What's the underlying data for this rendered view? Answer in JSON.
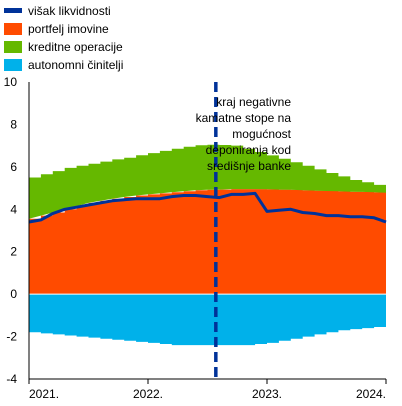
{
  "chart_data": {
    "type": "area",
    "title": "",
    "xlabel": "",
    "ylabel": "",
    "ylim": [
      -4,
      10
    ],
    "yticks": [
      -4,
      -2,
      0,
      2,
      4,
      6,
      8,
      10
    ],
    "xlim": [
      2021.0,
      2024.0
    ],
    "xticks": [
      {
        "label": "2021.",
        "value": 2021.0
      },
      {
        "label": "2022.",
        "value": 2022.0
      },
      {
        "label": "2023.",
        "value": 2023.0
      },
      {
        "label": "2024.",
        "value": 2024.0
      }
    ],
    "grid": false,
    "legend_position": "top-left",
    "x": [
      2021.0,
      2021.1,
      2021.2,
      2021.3,
      2021.4,
      2021.5,
      2021.6,
      2021.7,
      2021.8,
      2021.9,
      2022.0,
      2022.1,
      2022.2,
      2022.3,
      2022.4,
      2022.5,
      2022.6,
      2022.7,
      2022.8,
      2022.9,
      2023.0,
      2023.1,
      2023.2,
      2023.3,
      2023.4,
      2023.5,
      2023.6,
      2023.7,
      2023.8,
      2023.9,
      2024.0
    ],
    "series": [
      {
        "name": "portfelj imovine",
        "color": "#ff4b00",
        "kind": "stacked-area",
        "values": [
          3.55,
          3.7,
          3.85,
          4.0,
          4.15,
          4.3,
          4.4,
          4.5,
          4.58,
          4.65,
          4.7,
          4.75,
          4.8,
          4.85,
          4.9,
          4.92,
          4.93,
          4.95,
          4.95,
          4.95,
          4.94,
          4.93,
          4.92,
          4.9,
          4.88,
          4.86,
          4.85,
          4.83,
          4.82,
          4.8,
          4.78
        ]
      },
      {
        "name": "kreditne operacije",
        "color": "#65b800",
        "kind": "stacked-area",
        "values": [
          1.95,
          1.95,
          1.95,
          1.95,
          1.9,
          1.85,
          1.85,
          1.85,
          1.85,
          1.9,
          1.95,
          2.0,
          2.05,
          2.1,
          2.12,
          2.12,
          2.1,
          2.05,
          1.9,
          1.75,
          1.6,
          1.45,
          1.3,
          1.15,
          1.0,
          0.85,
          0.7,
          0.55,
          0.45,
          0.35,
          0.3
        ]
      },
      {
        "name": "autonomni činitelji",
        "color": "#00b1ea",
        "kind": "area-negative",
        "values": [
          -1.8,
          -1.85,
          -1.9,
          -1.95,
          -2.0,
          -2.05,
          -2.1,
          -2.15,
          -2.2,
          -2.25,
          -2.3,
          -2.35,
          -2.4,
          -2.4,
          -2.4,
          -2.4,
          -2.4,
          -2.4,
          -2.4,
          -2.35,
          -2.3,
          -2.2,
          -2.1,
          -2.0,
          -1.9,
          -1.8,
          -1.7,
          -1.65,
          -1.6,
          -1.55,
          -1.5
        ]
      },
      {
        "name": "višak likvidnosti",
        "color": "#003299",
        "kind": "line",
        "values": [
          3.4,
          3.5,
          3.8,
          4.0,
          4.1,
          4.2,
          4.3,
          4.4,
          4.45,
          4.5,
          4.5,
          4.5,
          4.6,
          4.65,
          4.65,
          4.6,
          4.55,
          4.7,
          4.7,
          4.75,
          3.9,
          3.95,
          4.0,
          3.85,
          3.8,
          3.7,
          3.7,
          3.65,
          3.65,
          3.6,
          3.4
        ]
      }
    ],
    "vertical_marker": {
      "x": 2022.57,
      "color": "#003299",
      "annotation": [
        "kraj negativne",
        "kamatne stope na",
        "mogućnost",
        "deponiranja kod",
        "središnje banke"
      ]
    }
  }
}
